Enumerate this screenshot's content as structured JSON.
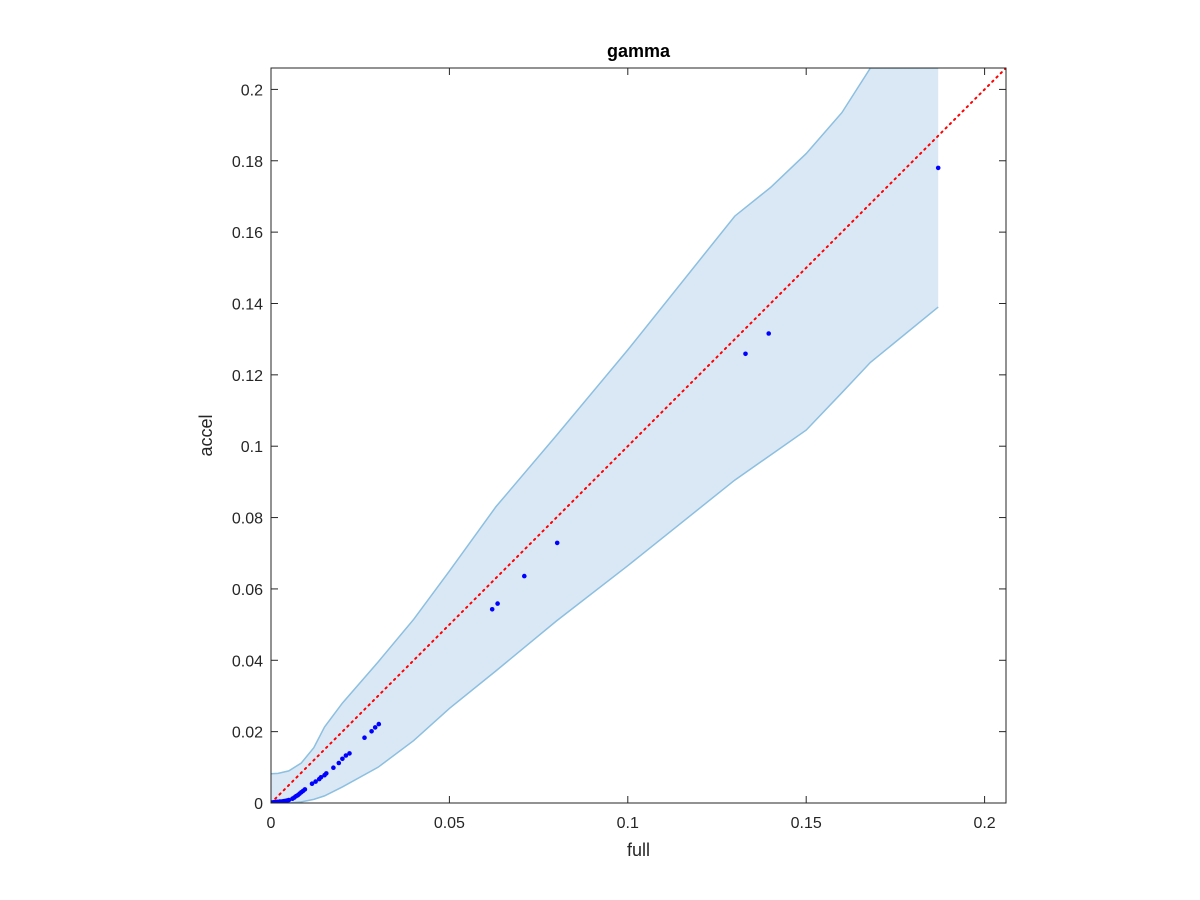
{
  "chart_data": {
    "type": "scatter",
    "title": "gamma",
    "xlabel": "full",
    "ylabel": "accel",
    "xlim": [
      0,
      0.206
    ],
    "ylim": [
      0,
      0.206
    ],
    "grid": false,
    "x_ticks": [
      0,
      0.05,
      0.1,
      0.15,
      0.2
    ],
    "x_tick_labels": [
      "0",
      "0.05",
      "0.1",
      "0.15",
      "0.2"
    ],
    "y_ticks": [
      0,
      0.02,
      0.04,
      0.06,
      0.08,
      0.1,
      0.12,
      0.14,
      0.16,
      0.18,
      0.2
    ],
    "y_tick_labels": [
      "0",
      "0.02",
      "0.04",
      "0.06",
      "0.08",
      "0.1",
      "0.12",
      "0.14",
      "0.16",
      "0.18",
      "0.2"
    ],
    "points": {
      "x": [
        0.0002,
        0.0005,
        0.0008,
        0.001,
        0.0013,
        0.0016,
        0.002,
        0.0025,
        0.003,
        0.0035,
        0.004,
        0.0045,
        0.005,
        0.006,
        0.0065,
        0.007,
        0.0075,
        0.008,
        0.0085,
        0.009,
        0.0095,
        0.0115,
        0.0125,
        0.0135,
        0.014,
        0.015,
        0.0155,
        0.0175,
        0.019,
        0.02,
        0.021,
        0.022,
        0.0262,
        0.0282,
        0.0292,
        0.0302,
        0.062,
        0.0635,
        0.071,
        0.0802,
        0.133,
        0.1395,
        0.187
      ],
      "y": [
        0.0001,
        0.0001,
        0.0002,
        0.0002,
        0.0002,
        0.0003,
        0.0003,
        0.0004,
        0.0004,
        0.0005,
        0.0006,
        0.0007,
        0.0008,
        0.0012,
        0.0015,
        0.0019,
        0.0022,
        0.0026,
        0.003,
        0.0034,
        0.0038,
        0.0054,
        0.006,
        0.0067,
        0.0072,
        0.0078,
        0.0083,
        0.0099,
        0.0112,
        0.0124,
        0.0133,
        0.0139,
        0.0183,
        0.0201,
        0.0212,
        0.0221,
        0.0543,
        0.0559,
        0.0636,
        0.0729,
        0.1259,
        0.1316,
        0.178
      ],
      "color": "#0000ff"
    },
    "reference_line": {
      "x": [
        0,
        0.206
      ],
      "y": [
        0,
        0.206
      ],
      "style": "dotted",
      "color": "#ff0000"
    },
    "band": {
      "fill_color": "#dae8f5",
      "edge_color": "#8cbfe0",
      "x": [
        0,
        0.002,
        0.005,
        0.0085,
        0.012,
        0.015,
        0.02,
        0.03,
        0.04,
        0.05,
        0.063,
        0.08,
        0.1,
        0.13,
        0.14,
        0.15,
        0.16,
        0.168,
        0.187
      ],
      "upper": [
        0.0082,
        0.0083,
        0.009,
        0.0112,
        0.0155,
        0.0213,
        0.028,
        0.0395,
        0.0515,
        0.065,
        0.083,
        0.103,
        0.127,
        0.1645,
        0.1725,
        0.182,
        0.1935,
        0.206,
        0.206
      ],
      "lower": [
        0,
        0,
        0,
        0.0003,
        0.001,
        0.002,
        0.0045,
        0.01,
        0.0175,
        0.0265,
        0.037,
        0.051,
        0.0665,
        0.0905,
        0.0975,
        0.1045,
        0.115,
        0.1235,
        0.139
      ]
    }
  }
}
